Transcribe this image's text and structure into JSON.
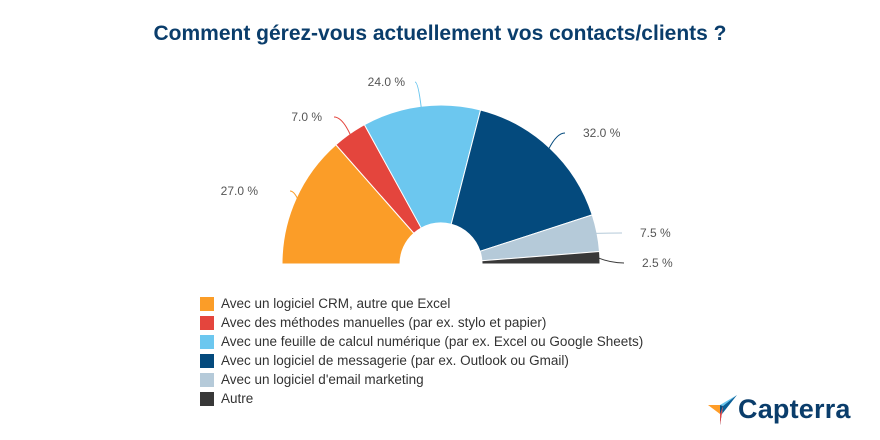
{
  "chart_data": {
    "type": "pie",
    "variant": "semicircle",
    "title": "Comment gérez-vous actuellement vos contacts/clients ?",
    "unit": "%",
    "series": [
      {
        "name": "Avec un logiciel CRM, autre que Excel",
        "value": 27.0,
        "label": "27.0 %",
        "color": "#fb9d28"
      },
      {
        "name": "Avec des méthodes manuelles (par ex. stylo et papier)",
        "value": 7.0,
        "label": "7.0 %",
        "color": "#e4453d"
      },
      {
        "name": "Avec une feuille de calcul numérique (par ex. Excel ou Google Sheets)",
        "value": 24.0,
        "label": "24.0 %",
        "color": "#6cc7ef"
      },
      {
        "name": "Avec un logiciel de messagerie (par ex. Outlook ou Gmail)",
        "value": 32.0,
        "label": "32.0 %",
        "color": "#044a7d"
      },
      {
        "name": "Avec un logiciel d'email marketing",
        "value": 7.5,
        "label": "7.5 %",
        "color": "#b5cad9"
      },
      {
        "name": "Autre",
        "value": 2.5,
        "label": "2.5 %",
        "color": "#383838"
      }
    ],
    "legend_position": "bottom-left"
  },
  "brand": {
    "logo_text": "Capterra",
    "logo_icon": "capterra-arrow-icon",
    "colors": {
      "orange": "#ff9d28",
      "blue": "#68c5ed",
      "navy": "#044d80",
      "red": "#e54747"
    }
  }
}
